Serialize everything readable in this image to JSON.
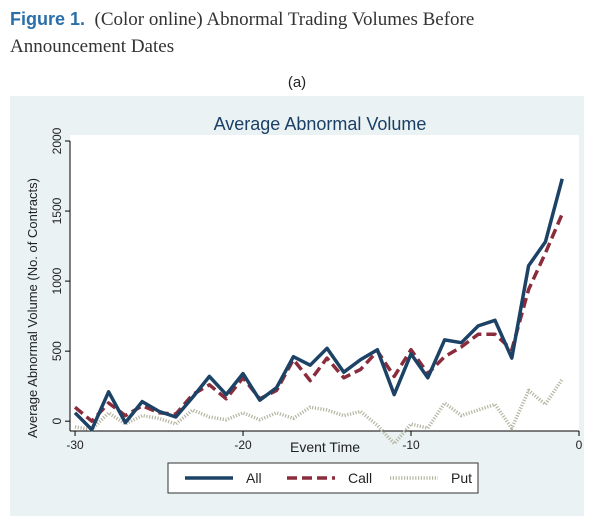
{
  "caption": {
    "figure_label": "Figure 1.",
    "text": "(Color online) Abnormal Trading Volumes Before Announcement Dates"
  },
  "panel_label": "(a)",
  "colors": {
    "panel_background": "#eaf2f3",
    "plot_background": "#ffffff",
    "title": "#1b3f66",
    "all": "#1c4266",
    "call": "#8b2c3c",
    "put": "#b5b5a2"
  },
  "chart_data": {
    "type": "line",
    "title": "Average Abnormal Volume",
    "xlabel": "Event Time",
    "ylabel": "Average Abnormal Volume (No. of Contracts)",
    "xlim": [
      -30.3,
      0
    ],
    "ylim": [
      -70,
      2000
    ],
    "xticks": [
      -30,
      -20,
      -10,
      0
    ],
    "yticks": [
      0,
      500,
      1000,
      1500,
      2000
    ],
    "grid": false,
    "legend_position": "bottom",
    "x": [
      -30,
      -29,
      -28,
      -27,
      -26,
      -25,
      -24,
      -23,
      -22,
      -21,
      -20,
      -19,
      -18,
      -17,
      -16,
      -15,
      -14,
      -13,
      -12,
      -11,
      -10,
      -9,
      -8,
      -7,
      -6,
      -5,
      -4,
      -3,
      -2,
      -1
    ],
    "series": [
      {
        "name": "All",
        "style": "solid",
        "values": [
          60,
          -60,
          210,
          -10,
          140,
          70,
          30,
          170,
          320,
          190,
          340,
          150,
          240,
          460,
          400,
          520,
          350,
          440,
          510,
          190,
          480,
          310,
          580,
          560,
          680,
          720,
          450,
          1110,
          1280,
          1730
        ]
      },
      {
        "name": "Call",
        "style": "dashed",
        "values": [
          100,
          0,
          130,
          40,
          110,
          60,
          50,
          190,
          260,
          160,
          310,
          160,
          220,
          440,
          290,
          450,
          310,
          370,
          500,
          320,
          510,
          340,
          460,
          530,
          620,
          620,
          510,
          940,
          1200,
          1480
        ]
      },
      {
        "name": "Put",
        "style": "dotted",
        "values": [
          -40,
          -60,
          60,
          -20,
          40,
          20,
          -20,
          80,
          30,
          10,
          60,
          10,
          60,
          20,
          100,
          80,
          40,
          70,
          -30,
          -160,
          -20,
          -50,
          130,
          40,
          80,
          120,
          -50,
          220,
          120,
          300
        ]
      }
    ]
  }
}
